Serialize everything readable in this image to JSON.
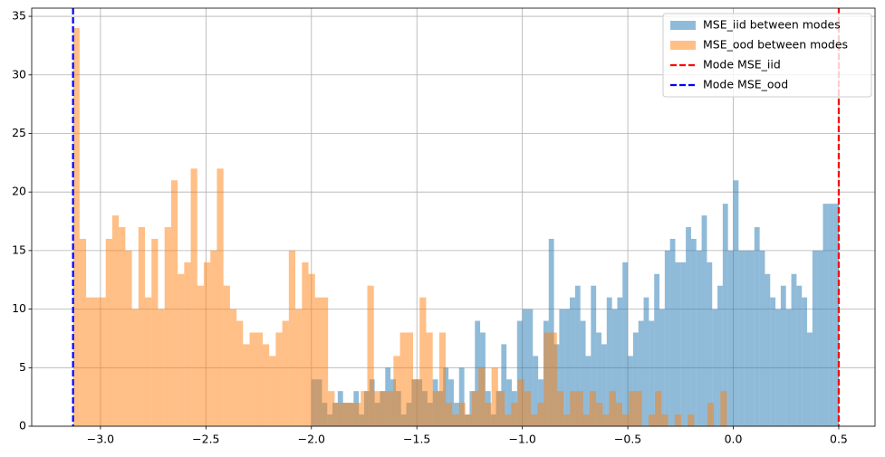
{
  "chart_data": {
    "type": "histogram",
    "xlim": [
      -3.326,
      0.672
    ],
    "ylim": [
      0,
      35.7
    ],
    "xticks": [
      {
        "value": -3.0,
        "label": "−3.0"
      },
      {
        "value": -2.5,
        "label": "−2.5"
      },
      {
        "value": -2.0,
        "label": "−2.0"
      },
      {
        "value": -1.5,
        "label": "−1.5"
      },
      {
        "value": -1.0,
        "label": "−1.0"
      },
      {
        "value": -0.5,
        "label": "−0.5"
      },
      {
        "value": 0.0,
        "label": "0.0"
      },
      0.5
    ],
    "yticks": [
      0,
      5,
      10,
      15,
      20,
      25,
      30,
      35
    ],
    "grid": true,
    "legend": "upper right",
    "series": [
      {
        "name": "MSE_iid between modes",
        "color": "#1f77b4",
        "alpha": 0.5,
        "bins": [
          -2,
          -1.975,
          -1.95,
          -1.925,
          -1.9,
          -1.875,
          -1.85,
          -1.825,
          -1.8,
          -1.775,
          -1.75,
          -1.725,
          -1.7,
          -1.675,
          -1.65,
          -1.625,
          -1.6,
          -1.575,
          -1.55,
          -1.525,
          -1.5,
          -1.475,
          -1.45,
          -1.425,
          -1.4,
          -1.375,
          -1.35,
          -1.325,
          -1.3,
          -1.275,
          -1.25,
          -1.225,
          -1.2,
          -1.175,
          -1.15,
          -1.125,
          -1.1,
          -1.075,
          -1.05,
          -1.025,
          -1,
          -0.975,
          -0.95,
          -0.925,
          -0.9,
          -0.875,
          -0.85,
          -0.825,
          -0.8,
          -0.775,
          -0.75,
          -0.725,
          -0.7,
          -0.675,
          -0.65,
          -0.625,
          -0.6,
          -0.575,
          -0.55,
          -0.525,
          -0.5,
          -0.475,
          -0.45,
          -0.425,
          -0.4,
          -0.375,
          -0.35,
          -0.325,
          -0.3,
          -0.275,
          -0.25,
          -0.225,
          -0.2,
          -0.175,
          -0.15,
          -0.125,
          -0.1,
          -0.075,
          -0.05,
          -0.025,
          0,
          0.025,
          0.05,
          0.075,
          0.1,
          0.125,
          0.15,
          0.175,
          0.2,
          0.225,
          0.25,
          0.275,
          0.3,
          0.325,
          0.35,
          0.375,
          0.4,
          0.425,
          0.45,
          0.475,
          0.5
        ],
        "values": [
          4,
          4,
          2,
          1,
          2,
          3,
          2,
          2,
          3,
          1,
          3,
          4,
          2,
          3,
          5,
          4,
          3,
          1,
          2,
          4,
          4,
          3,
          2,
          4,
          3,
          5,
          4,
          2,
          5,
          1,
          3,
          9,
          8,
          3,
          1,
          3,
          7,
          4,
          3,
          9,
          10,
          10,
          6,
          4,
          9,
          16,
          7,
          10,
          10,
          11,
          12,
          9,
          6,
          12,
          8,
          7,
          11,
          10,
          11,
          14,
          6,
          8,
          9,
          11,
          9,
          13,
          10,
          15,
          16,
          14,
          14,
          17,
          16,
          15,
          18,
          14,
          10,
          12,
          19,
          15,
          21,
          15,
          15,
          15,
          17,
          15,
          13,
          11,
          10,
          12,
          10,
          13,
          12,
          11,
          8,
          15,
          15,
          19,
          19,
          19
        ]
      },
      {
        "name": "MSE_ood between modes",
        "color": "#ff7f0e",
        "alpha": 0.5,
        "bins": [
          -3.13,
          -3.099,
          -3.068,
          -3.037,
          -3.006,
          -2.975,
          -2.944,
          -2.913,
          -2.882,
          -2.851,
          -2.82,
          -2.789,
          -2.758,
          -2.727,
          -2.696,
          -2.665,
          -2.634,
          -2.603,
          -2.572,
          -2.541,
          -2.51,
          -2.479,
          -2.448,
          -2.417,
          -2.386,
          -2.355,
          -2.324,
          -2.293,
          -2.262,
          -2.231,
          -2.2,
          -2.169,
          -2.138,
          -2.107,
          -2.076,
          -2.045,
          -2.014,
          -1.983,
          -1.952,
          -1.921,
          -1.89,
          -1.859,
          -1.828,
          -1.797,
          -1.766,
          -1.735,
          -1.704,
          -1.673,
          -1.642,
          -1.611,
          -1.58,
          -1.549,
          -1.518,
          -1.487,
          -1.456,
          -1.425,
          -1.394,
          -1.363,
          -1.332,
          -1.301,
          -1.27,
          -1.239,
          -1.208,
          -1.177,
          -1.146,
          -1.115,
          -1.084,
          -1.053,
          -1.022,
          -0.991,
          -0.96,
          -0.929,
          -0.898,
          -0.867,
          -0.836,
          -0.805,
          -0.774,
          -0.743,
          -0.712,
          -0.681,
          -0.65,
          -0.619,
          -0.588,
          -0.557,
          -0.526,
          -0.495,
          -0.464,
          -0.433,
          -0.402,
          -0.371,
          -0.34,
          -0.309,
          -0.278,
          -0.247,
          -0.216,
          -0.185,
          -0.154,
          -0.123,
          -0.092,
          -0.061,
          -0.03
        ],
        "values": [
          34,
          16,
          11,
          11,
          11,
          16,
          18,
          17,
          15,
          10,
          17,
          11,
          16,
          10,
          17,
          21,
          13,
          14,
          22,
          12,
          14,
          15,
          22,
          12,
          10,
          9,
          7,
          8,
          8,
          7,
          6,
          8,
          9,
          15,
          10,
          14,
          13,
          11,
          11,
          3,
          2,
          2,
          2,
          2,
          3,
          12,
          3,
          3,
          3,
          6,
          8,
          8,
          4,
          11,
          8,
          3,
          8,
          2,
          1,
          2,
          1,
          3,
          5,
          2,
          5,
          3,
          1,
          2,
          4,
          3,
          1,
          2,
          8,
          8,
          3,
          1,
          3,
          3,
          1,
          3,
          2,
          1,
          3,
          2,
          1,
          3,
          3,
          0,
          1,
          3,
          1,
          0,
          1,
          0,
          1,
          0,
          0,
          2,
          0,
          3
        ]
      }
    ],
    "vlines": [
      {
        "name": "Mode MSE_iid",
        "color": "#ff0000",
        "value": 0.5
      },
      {
        "name": "Mode MSE_ood",
        "color": "#0000ff",
        "value": -3.13
      }
    ]
  }
}
